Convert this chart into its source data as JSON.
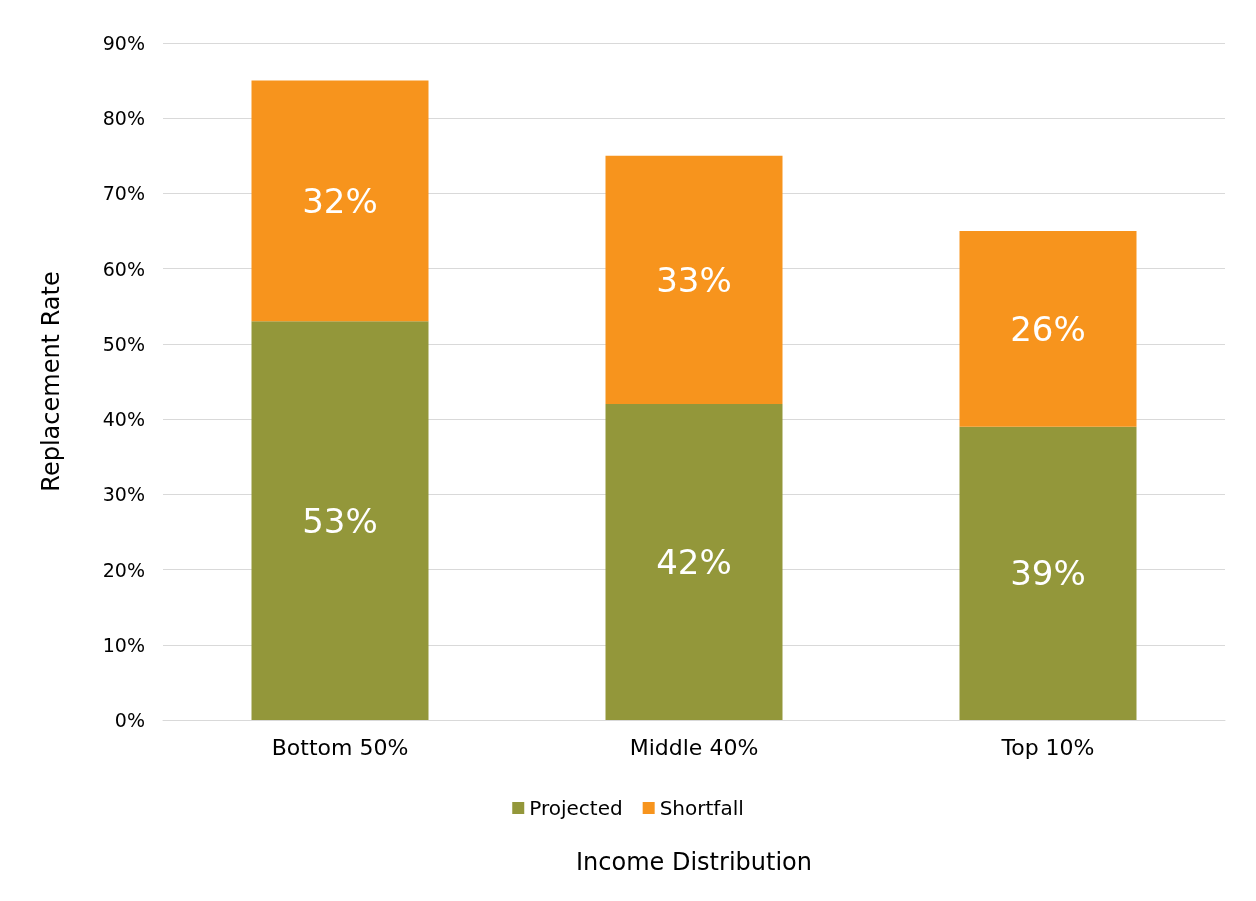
{
  "chart_data": {
    "type": "bar",
    "stacked": true,
    "categories": [
      "Bottom 50%",
      "Middle 40%",
      "Top 10%"
    ],
    "series": [
      {
        "name": "Projected",
        "color": "#93973a",
        "values": [
          53,
          42,
          39
        ],
        "value_labels": [
          "53%",
          "42%",
          "39%"
        ]
      },
      {
        "name": "Shortfall",
        "color": "#f7941d",
        "values": [
          32,
          33,
          26
        ],
        "value_labels": [
          "32%",
          "33%",
          "26%"
        ]
      }
    ],
    "xlabel": "Income Distribution",
    "ylabel": "Replacement Rate",
    "ylim": [
      0,
      90
    ],
    "yticks": [
      {
        "value": 0,
        "label": "0%"
      },
      {
        "value": 10,
        "label": "10%"
      },
      {
        "value": 20,
        "label": "20%"
      },
      {
        "value": 30,
        "label": "30%"
      },
      {
        "value": 40,
        "label": "40%"
      },
      {
        "value": 50,
        "label": "50%"
      },
      {
        "value": 60,
        "label": "60%"
      },
      {
        "value": 70,
        "label": "70%"
      },
      {
        "value": 80,
        "label": "80%"
      },
      {
        "value": 90,
        "label": "90%"
      }
    ],
    "grid": "y",
    "legend": "bottom"
  }
}
